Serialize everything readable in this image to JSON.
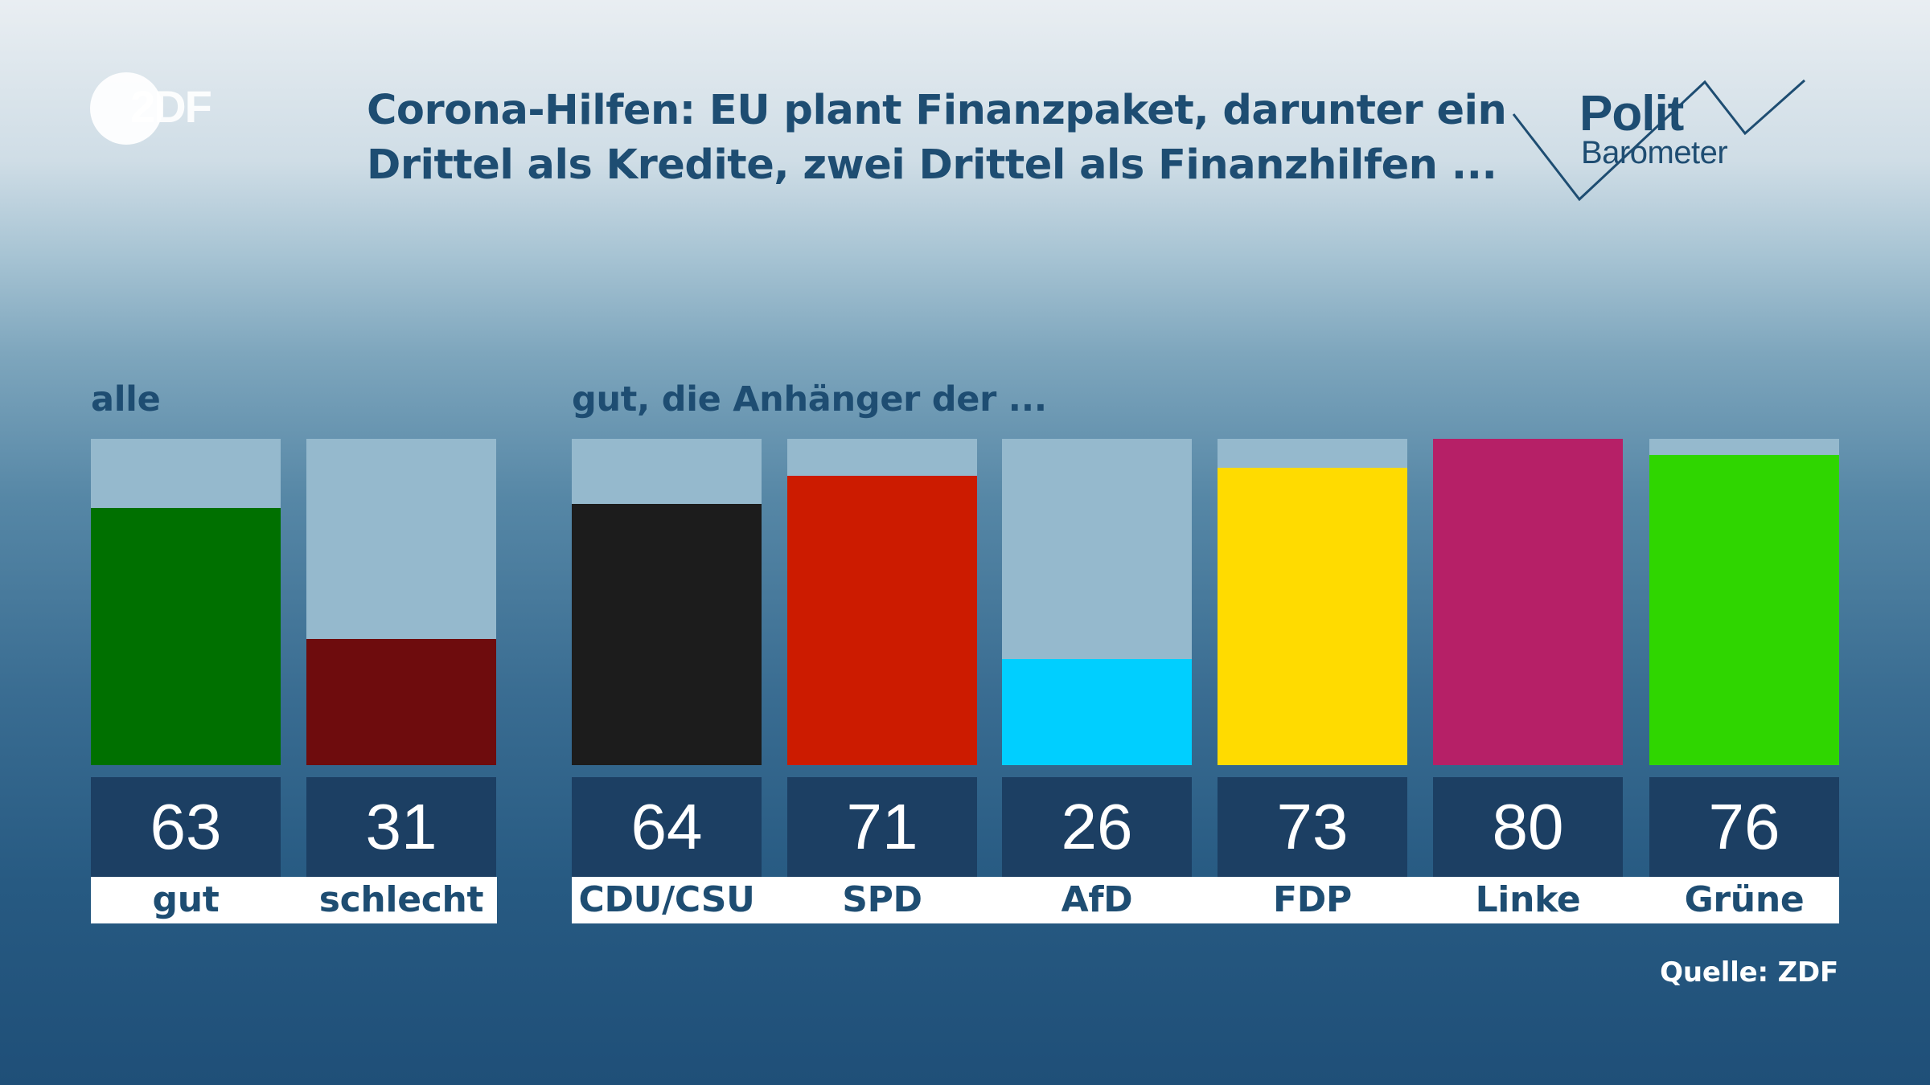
{
  "logo": {
    "zdf_text": "2DF"
  },
  "header": {
    "title_line1": "Corona-Hilfen: EU plant Finanzpaket, darunter ein",
    "title_line2": "Drittel als Kredite, zwei Drittel als Finanzhilfen ..."
  },
  "politbarometer": {
    "polit": "Polit",
    "barometer": "Barometer"
  },
  "chart_data": {
    "type": "bar",
    "group_labels": [
      "alle",
      "gut, die Anhänger der ..."
    ],
    "categories": [
      "gut",
      "schlecht",
      "CDU/CSU",
      "SPD",
      "AfD",
      "FDP",
      "Linke",
      "Grüne"
    ],
    "values": [
      63,
      31,
      64,
      71,
      26,
      73,
      80,
      76
    ],
    "value_labels": [
      "63",
      "31",
      "64",
      "71",
      "26",
      "73",
      "80",
      "76"
    ],
    "colors": [
      "#007000",
      "#6e0c0d",
      "#1c1c1c",
      "#cc1b00",
      "#00cfff",
      "#ffdb00",
      "#b62067",
      "#2fd600"
    ],
    "ylim": [
      0,
      80
    ],
    "background_bar_color": "#95b9cd"
  },
  "footer": {
    "source": "Quelle: ZDF"
  }
}
